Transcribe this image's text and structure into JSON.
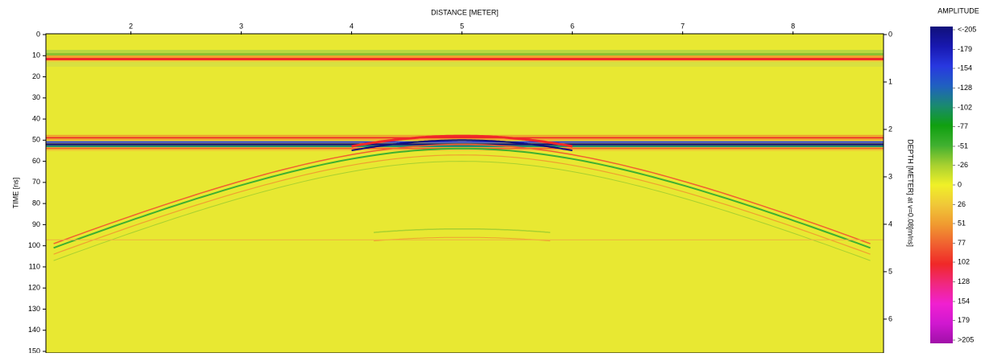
{
  "chart_data": {
    "type": "heatmap",
    "xlabel": "DISTANCE [METER]",
    "ylabel": "TIME [ns]",
    "y2label": "DEPTH [METER] at v=0.08[m/ns]",
    "xlim": [
      1.23,
      8.82
    ],
    "xticks": [
      2,
      3,
      4,
      5,
      6,
      7,
      8
    ],
    "ylim": [
      0,
      150
    ],
    "yticks": [
      0,
      10,
      20,
      30,
      40,
      50,
      60,
      70,
      80,
      90,
      100,
      110,
      120,
      130,
      140,
      150
    ],
    "y2lim": [
      0,
      6.68
    ],
    "y2ticks": [
      0,
      1,
      2,
      3,
      4,
      5,
      6
    ],
    "colorbar": {
      "title": "AMPLITUDE",
      "clim": [
        -205,
        205
      ],
      "ticks": [
        {
          "value": -205,
          "label": "<-205"
        },
        -179,
        -154,
        -128,
        -102,
        -77,
        -51,
        -26,
        0,
        26,
        51,
        77,
        102,
        128,
        154,
        179,
        {
          "value": 205,
          "label": ">205"
        }
      ],
      "colors": [
        "#10107a",
        "#1818b0",
        "#2838e0",
        "#2060c0",
        "#1a8a70",
        "#10a010",
        "#40b030",
        "#a8d030",
        "#f0f028",
        "#f0c838",
        "#f09a30",
        "#f06030",
        "#f02828",
        "#f02880",
        "#f020d0",
        "#d018d0",
        "#a010a8"
      ]
    }
  }
}
